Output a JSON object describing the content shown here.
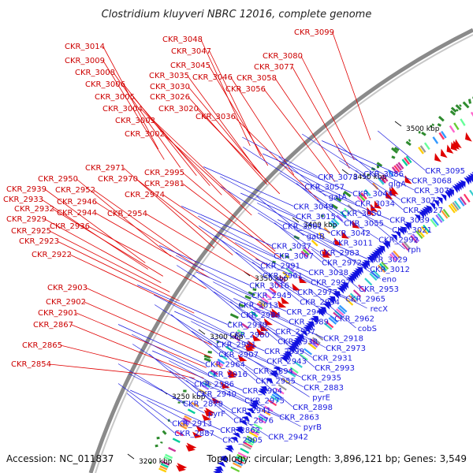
{
  "title": "Clostridium kluyveri NBRC 12016, complete genome",
  "footer": {
    "accession": "Accession: NC_011837",
    "stats": "Topology: circular; Length: 3,896,121 bp; Genes: 3,549"
  },
  "colors": {
    "forward": "#e00000",
    "reverse": "#1010e0",
    "backbone": "#888888",
    "gc": "#2e8b2e"
  },
  "ticks": [
    "3500 kbp",
    "3450 kbp",
    "3400 kbp",
    "3350 kbp",
    "3300 kbp",
    "3250 kbp",
    "3200 kbp"
  ],
  "forward_labels": [
    "CKR_3099",
    "CKR_3048",
    "CKR_3047",
    "CKR_3080",
    "CKR_3014",
    "CKR_3077",
    "CKR_3045",
    "CKR_3009",
    "CKR_3046",
    "CKR_3058",
    "CKR_3008",
    "CKR_3035",
    "CKR_3056",
    "CKR_3006",
    "CKR_3030",
    "CKR_3005",
    "CKR_3026",
    "CKR_3004",
    "CKR_3020",
    "CKR_3036",
    "CKR_3003",
    "CKR_3002",
    "CKR_2971",
    "CKR_2995",
    "CKR_2950",
    "CKR_2970",
    "CKR_2981",
    "CKR_2939",
    "CKR_2952",
    "CKR_2974",
    "CKR_2933",
    "CKR_2946",
    "CKR_2932",
    "CKR_2954",
    "CKR_2944",
    "CKR_2929",
    "CKR_2936",
    "CKR_2925",
    "CKR_2923",
    "CKR_2922",
    "CKR_2903",
    "CKR_2902",
    "CKR_2901",
    "CKR_2867",
    "CKR_2865",
    "CKR_2854"
  ],
  "reverse_labels": [
    "CKR_3095",
    "CKR_3086",
    "CKR_3078",
    "CKR_3068",
    "glgA",
    "CKR_3057",
    "CKR_3076",
    "CKR_3044",
    "gatA",
    "CKR_3072",
    "CKR_3034",
    "CKR_3049",
    "CKR_3027",
    "CKR_3050",
    "CKR_3015",
    "CKR_3039",
    "CKR_3055",
    "CKR_3001",
    "CKR_3021",
    "CKR_3042",
    "gatB",
    "CKR_2992",
    "CKR_3011",
    "CKR_3037",
    "rph",
    "CKR_2983",
    "CKR_3007",
    "CKR_3029",
    "CKR_2972",
    "CKR_2991",
    "CKR_3012",
    "CKR_3038",
    "CKR_2961",
    "eno",
    "CKR_2997",
    "CKR_3016",
    "CKR_2953",
    "CKR_2977",
    "CKR_2945",
    "CKR_2965",
    "CKR_2994",
    "CKR_3013",
    "recX",
    "CKR_2947",
    "CKR_2984",
    "CKR_2962",
    "CKR_2989",
    "CKR_2930",
    "cobS",
    "CKR_2957",
    "CKR_2980",
    "CKR_2918",
    "CKR_2938",
    "CKR_2951",
    "CKR_2973",
    "CKR_2999",
    "CKR_2907",
    "CKR_2931",
    "CKR_2943",
    "CKR_2964",
    "CKR_2993",
    "CKR_2894",
    "CKR_2916",
    "CKR_2935",
    "CKR_2955",
    "CKR_2986",
    "CKR_2883",
    "CKR_2904",
    "CKR_2940",
    "pyrE",
    "CKR_2975",
    "CKR_2879",
    "CKR_2898",
    "CKR_2941",
    "pyrF",
    "CKR_2863",
    "CKR_2876",
    "CKR_2913",
    "pyrB",
    "CKR_2862",
    "CKR_2887",
    "CKR_2942",
    "CKR_2905"
  ]
}
